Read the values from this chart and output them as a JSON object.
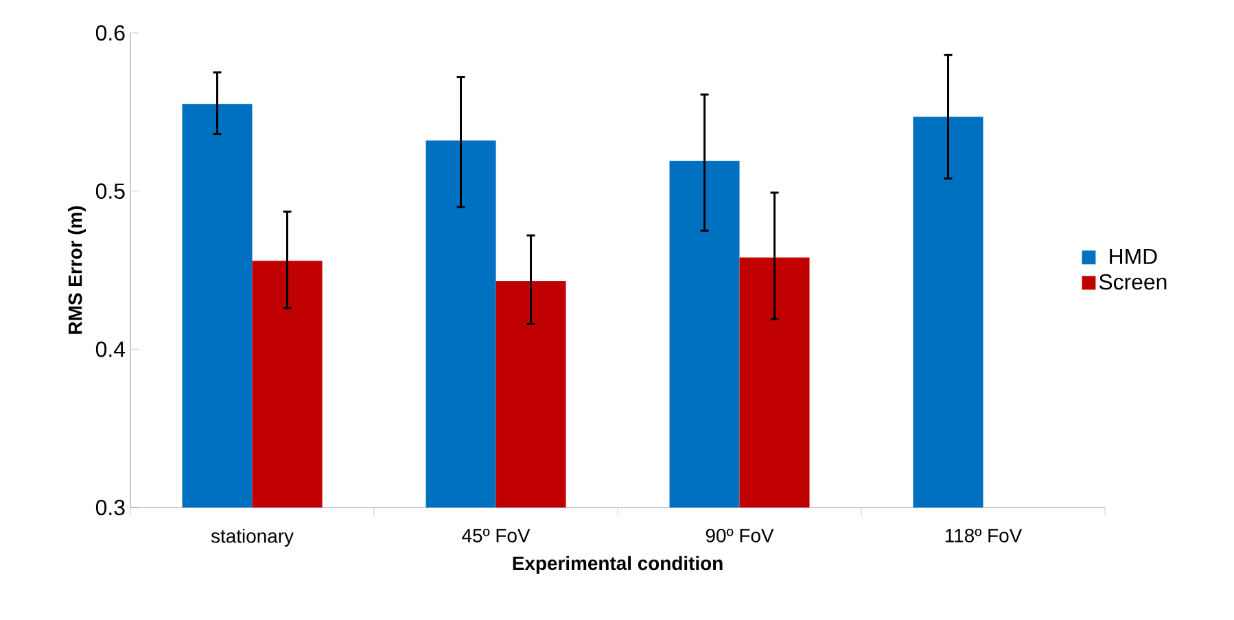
{
  "chart_data": {
    "type": "bar",
    "xlabel": "Experimental condition",
    "ylabel": "RMS Error (m)",
    "categories": [
      "stationary",
      "45º FoV",
      "90º FoV",
      "118º FoV"
    ],
    "series": [
      {
        "name": "HMD",
        "color": "#0070c0",
        "values": [
          0.555,
          0.532,
          0.519,
          0.547
        ],
        "errors": [
          [
            0.536,
            0.575
          ],
          [
            0.49,
            0.572
          ],
          [
            0.475,
            0.561
          ],
          [
            0.508,
            0.586
          ]
        ]
      },
      {
        "name": "Screen",
        "color": "#c00000",
        "values": [
          0.456,
          0.443,
          0.458,
          null
        ],
        "errors": [
          [
            0.426,
            0.487
          ],
          [
            0.416,
            0.472
          ],
          [
            0.419,
            0.499
          ],
          null
        ]
      }
    ],
    "ylim": [
      0.3,
      0.6
    ],
    "yticks": [
      0.3,
      0.4,
      0.5,
      0.6
    ],
    "legend": "right",
    "grid": false
  }
}
